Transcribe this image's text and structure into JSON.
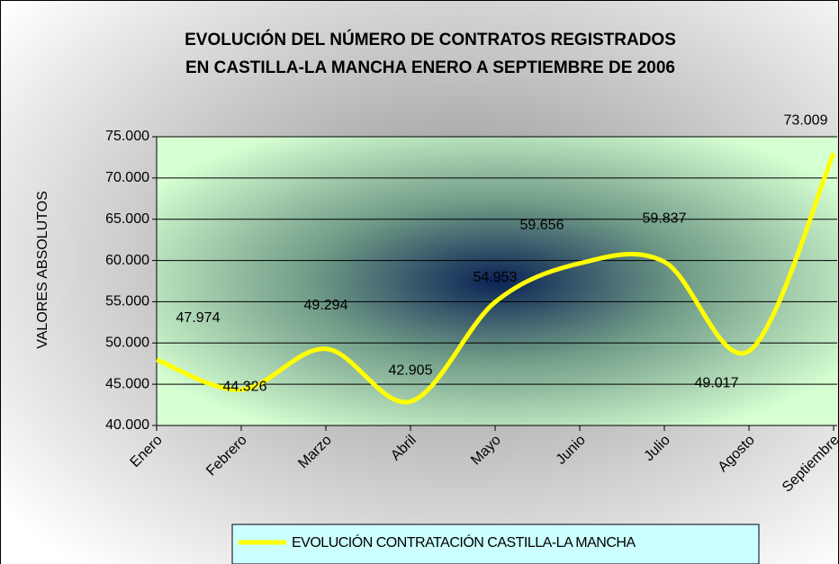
{
  "chart_data": {
    "type": "line",
    "title": [
      "EVOLUCIÓN DEL NÚMERO DE CONTRATOS REGISTRADOS",
      "EN CASTILLA-LA MANCHA ENERO A SEPTIEMBRE DE 2006"
    ],
    "y_label": "VALORES ABSOLUTOS",
    "categories": [
      "Enero",
      "Febrero",
      "Marzo",
      "Abril",
      "Mayo",
      "Junio",
      "Julio",
      "Agosto",
      "Septiembre"
    ],
    "series": [
      {
        "name": "EVOLUCIÓN CONTRATACIÓN CASTILLA-LA MANCHA",
        "color": "#ffff00",
        "values": [
          47974,
          44326,
          49294,
          42905,
          54953,
          59656,
          59837,
          49017,
          73009
        ],
        "value_labels": [
          "47.974",
          "44.326",
          "49.294",
          "42.905",
          "54.953",
          "59.656",
          "59.837",
          "49.017",
          "73.009"
        ]
      }
    ],
    "ylim": [
      40000,
      75000
    ],
    "yticks": [
      {
        "value": 40000,
        "label": "40.000"
      },
      {
        "value": 45000,
        "label": "45.000"
      },
      {
        "value": 50000,
        "label": "50.000"
      },
      {
        "value": 55000,
        "label": "55.000"
      },
      {
        "value": 60000,
        "label": "60.000"
      },
      {
        "value": 65000,
        "label": "65.000"
      },
      {
        "value": 70000,
        "label": "70.000"
      },
      {
        "value": 75000,
        "label": "75.000"
      }
    ],
    "grid": true,
    "smooth": true,
    "legend": "bottom"
  }
}
